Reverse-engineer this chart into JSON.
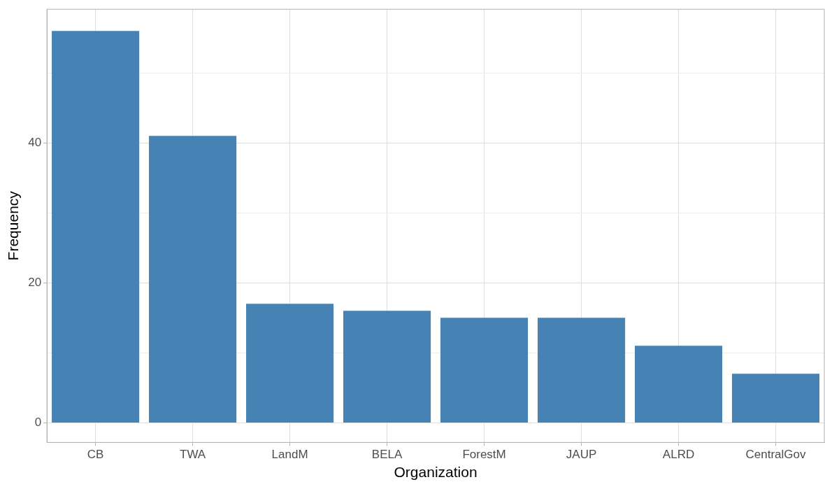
{
  "chart_data": {
    "type": "bar",
    "xlabel": "Organization",
    "ylabel": "Frequency",
    "categories": [
      "CB",
      "TWA",
      "LandM",
      "BELA",
      "ForestM",
      "JAUP",
      "ALRD",
      "CentralGov"
    ],
    "values": [
      56,
      41,
      17,
      16,
      15,
      15,
      11,
      7
    ],
    "color": "#4682b4",
    "ylim": [
      -2.8,
      59.1
    ],
    "yticks": [
      0,
      {
        "value": 10,
        "label": null
      },
      20,
      {
        "value": 30,
        "label": null
      },
      40,
      {
        "value": 50,
        "label": null
      }
    ],
    "grid": true,
    "legend": false
  }
}
